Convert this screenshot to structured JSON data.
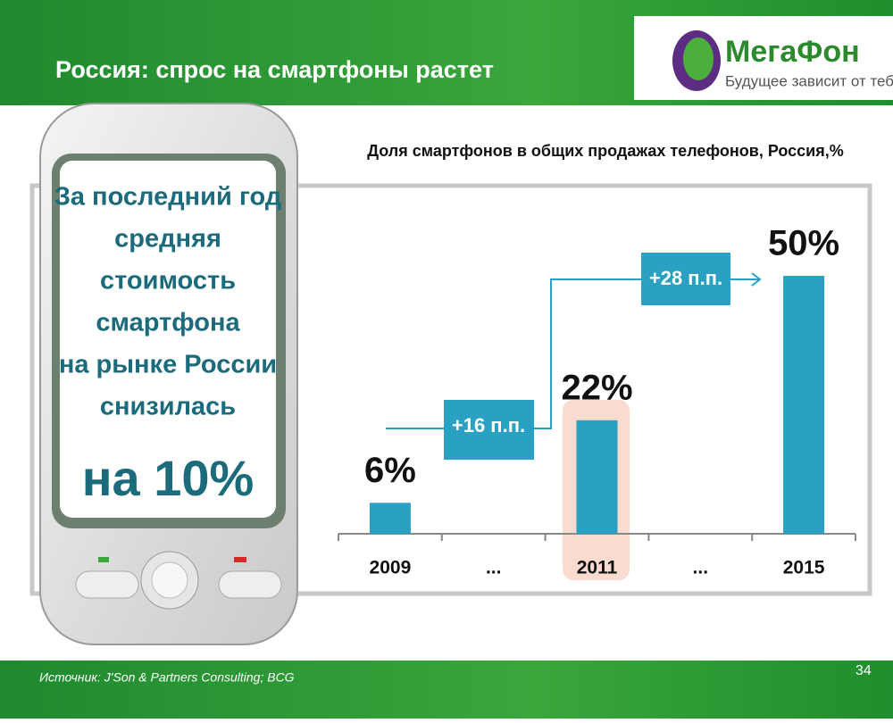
{
  "slide": {
    "title": "Россия: спрос на смартфоны растет",
    "logo": "МегаФон",
    "slogan": "Будущее зависит от тебя",
    "phone_text": [
      "За последний год",
      "средняя",
      "стоимость",
      "смартфона",
      "на рынке России",
      "снизилась"
    ],
    "phone_highlight": "на 10%",
    "source": "Источник: J'Son & Partners Consulting; BCG",
    "page_number": "34"
  },
  "chart_data": {
    "type": "bar",
    "title": "Доля смартфонов в общих продажах телефонов, Россия,%",
    "categories": [
      "2009",
      "...",
      "2011",
      "...",
      "2015"
    ],
    "values": [
      6,
      null,
      22,
      null,
      50
    ],
    "value_labels": [
      "6%",
      null,
      "22%",
      null,
      "50%"
    ],
    "color": "#2aa1c2",
    "annotations": [
      "+16 п.п.",
      "+28 п.п."
    ]
  }
}
